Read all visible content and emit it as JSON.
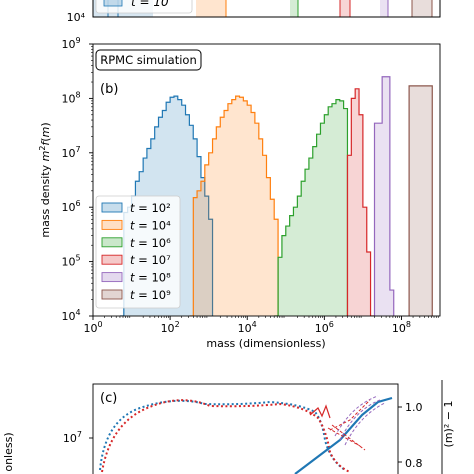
{
  "chart_data": [
    {
      "panel": "top-partial",
      "type": "area",
      "yticks": [
        "10⁴"
      ],
      "legend": [
        {
          "label": "t = 10",
          "color": "#1f77b4"
        }
      ]
    },
    {
      "panel": "(b)",
      "type": "area",
      "title_box": "RPMC simulation",
      "panel_label": "(b)",
      "xlabel": "mass (dimensionless)",
      "ylabel": "mass density m²f(m)",
      "xscale": "log",
      "yscale": "log",
      "xlim": [
        1,
        1000000000.0
      ],
      "ylim": [
        10000.0,
        1000000000.0
      ],
      "xticks": [
        {
          "exp": "0",
          "value": 1
        },
        {
          "exp": "2",
          "value": 100
        },
        {
          "exp": "4",
          "value": 10000
        },
        {
          "exp": "6",
          "value": 1000000
        },
        {
          "exp": "8",
          "value": 100000000
        }
      ],
      "yticks": [
        {
          "exp": "4",
          "value": 10000
        },
        {
          "exp": "5",
          "value": 100000
        },
        {
          "exp": "6",
          "value": 1000000
        },
        {
          "exp": "7",
          "value": 10000000
        },
        {
          "exp": "8",
          "value": 100000000
        },
        {
          "exp": "9",
          "value": 1000000000
        }
      ],
      "legend_position": "lower-left",
      "series": [
        {
          "name": "t = 10²",
          "color": "#1f77b4",
          "bins": [
            [
              5.0,
              10000
            ],
            [
              6.3,
              800000
            ],
            [
              7.9,
              1000000
            ],
            [
              10,
              1600000
            ],
            [
              12.6,
              3000000
            ],
            [
              15.8,
              4500000
            ],
            [
              20,
              8000000
            ],
            [
              25,
              12000000
            ],
            [
              31.6,
              18000000
            ],
            [
              39.8,
              30000000
            ],
            [
              50,
              45000000
            ],
            [
              63,
              60000000
            ],
            [
              79,
              85000000
            ],
            [
              100,
              105000000
            ],
            [
              126,
              110000000
            ],
            [
              158,
              95000000
            ],
            [
              200,
              75000000
            ],
            [
              251,
              50000000
            ],
            [
              316,
              32000000
            ],
            [
              398,
              18000000
            ],
            [
              501,
              8500000
            ],
            [
              631,
              3500000
            ],
            [
              794,
              1600000
            ],
            [
              1000,
              600000
            ]
          ],
          "edge": 1260
        },
        {
          "name": "t = 10⁴",
          "color": "#ff7f0e",
          "bins": [
            [
              320,
              10000
            ],
            [
              400,
              1500000
            ],
            [
              500,
              2000000
            ],
            [
              630,
              3000000
            ],
            [
              794,
              6000000
            ],
            [
              1000,
              10000000
            ],
            [
              1260,
              18000000
            ],
            [
              1580,
              30000000
            ],
            [
              2000,
              45000000
            ],
            [
              2510,
              60000000
            ],
            [
              3160,
              80000000
            ],
            [
              3980,
              95000000
            ],
            [
              5010,
              110000000
            ],
            [
              6310,
              105000000
            ],
            [
              7940,
              90000000
            ],
            [
              10000,
              75000000
            ],
            [
              12600,
              55000000
            ],
            [
              15800,
              35000000
            ],
            [
              20000,
              18000000
            ],
            [
              25100,
              9000000
            ],
            [
              31600,
              3500000
            ],
            [
              39800,
              1400000
            ],
            [
              50100,
              600000
            ]
          ],
          "edge": 63100
        },
        {
          "name": "t = 10⁶",
          "color": "#2ca02c",
          "bins": [
            [
              50100,
              10000
            ],
            [
              63100,
              120000
            ],
            [
              79400,
              300000
            ],
            [
              100000,
              450000
            ],
            [
              126000,
              700000
            ],
            [
              158000,
              1000000
            ],
            [
              200000,
              1600000
            ],
            [
              251000,
              3000000
            ],
            [
              316000,
              5000000
            ],
            [
              398000,
              8000000
            ],
            [
              501000,
              13000000
            ],
            [
              631000,
              22000000
            ],
            [
              794000,
              35000000
            ],
            [
              1000000,
              50000000
            ],
            [
              1260000,
              70000000
            ],
            [
              1580000,
              80000000
            ],
            [
              2000000,
              95000000
            ],
            [
              2510000,
              90000000
            ],
            [
              3160000,
              65000000
            ]
          ],
          "edge": 3980000
        },
        {
          "name": "t = 10⁷",
          "color": "#d62728",
          "bins": [
            [
              3980000,
              9000000
            ],
            [
              5010000,
              100000000
            ],
            [
              6310000,
              150000000
            ],
            [
              7940000,
              50000000
            ],
            [
              10000000,
              1000000
            ],
            [
              12600000,
              150000
            ],
            [
              15800000,
              10000
            ]
          ],
          "edge": 20000000
        },
        {
          "name": "t = 10⁸",
          "color": "#9467bd",
          "bins": [
            [
              20000000,
              35000000
            ],
            [
              31600000,
              250000000
            ],
            [
              50100000,
              30000
            ]
          ],
          "edge": 63100000
        },
        {
          "name": "t = 10⁹",
          "color": "#8c564b",
          "bins": [
            [
              158000000,
              170000000
            ]
          ],
          "edge": 630000000
        }
      ]
    },
    {
      "panel": "(c)",
      "type": "line",
      "panel_label": "(c)",
      "yticks_left": [
        {
          "exp": "7",
          "value": 10000000
        }
      ],
      "yticks_right": [
        "1.0",
        "0.8"
      ],
      "ylabel_left_partial": "onless)",
      "ylabel_right_partial": "(m)² − 1"
    }
  ]
}
